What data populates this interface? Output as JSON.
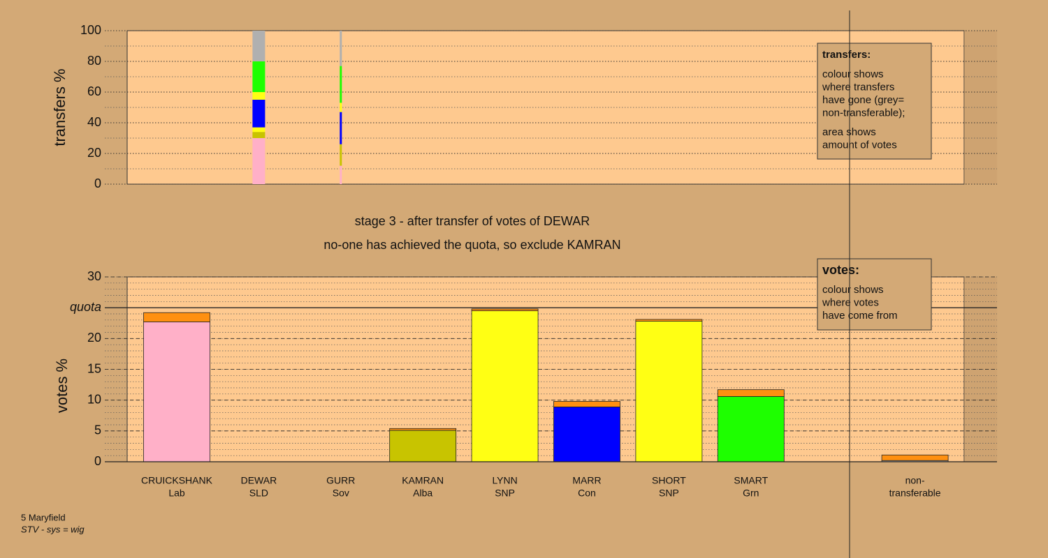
{
  "chart_data": [
    {
      "type": "bar",
      "stacked": true,
      "ylabel": "transfers %",
      "ylim": [
        0,
        100
      ],
      "yticks": [
        0,
        20,
        40,
        60,
        80,
        100
      ],
      "grid": true,
      "minor_step": 10,
      "amounts": [
        null,
        3.6,
        0.6,
        null,
        null,
        null,
        null,
        null,
        null,
        null
      ],
      "series": [
        {
          "color": "#ffb0c8",
          "values": [
            null,
            30,
            12,
            null,
            null,
            null,
            null,
            null,
            null,
            null
          ]
        },
        {
          "color": "#c8c400",
          "values": [
            null,
            4,
            14,
            null,
            null,
            null,
            null,
            null,
            null,
            null
          ]
        },
        {
          "color": "#ffff14",
          "values": [
            null,
            3,
            0,
            null,
            null,
            null,
            null,
            null,
            null,
            null
          ]
        },
        {
          "color": "#0000ff",
          "values": [
            null,
            18,
            21,
            null,
            null,
            null,
            null,
            null,
            null,
            null
          ]
        },
        {
          "color": "#ffff14",
          "values": [
            null,
            5,
            6,
            null,
            null,
            null,
            null,
            null,
            null,
            null
          ]
        },
        {
          "color": "#1eff00",
          "values": [
            null,
            20,
            24,
            null,
            null,
            null,
            null,
            null,
            null,
            null
          ]
        },
        {
          "color": "#b0b0b0",
          "values": [
            null,
            20,
            23,
            null,
            null,
            null,
            null,
            null,
            null,
            null
          ]
        }
      ],
      "legend": {
        "title": "transfers:",
        "lines": [
          [
            "colour shows",
            "where transfers",
            "have gone (grey=",
            "non-transferable);"
          ],
          [
            "area shows",
            "amount of votes"
          ]
        ]
      }
    },
    {
      "type": "bar",
      "stacked": true,
      "ylabel": "votes %",
      "title": [
        "stage 3 - after transfer of votes of DEWAR",
        "no-one has achieved the quota, so exclude KAMRAN"
      ],
      "categories": [
        "CRUICKSHANK",
        "DEWAR",
        "GURR",
        "KAMRAN",
        "LYNN",
        "MARR",
        "SHORT",
        "SMART",
        null,
        "non-"
      ],
      "parties": [
        "Lab",
        "SLD",
        "Sov",
        "Alba",
        "SNP",
        "Con",
        "SNP",
        "Grn",
        null,
        "transferable"
      ],
      "ylim": [
        0,
        30
      ],
      "yticks": [
        0,
        5,
        10,
        15,
        20,
        {
          "value": 25,
          "label": "quota"
        },
        30
      ],
      "grid": true,
      "minor_step": 1,
      "quota": 25,
      "series": [
        {
          "colors": [
            "#ffb0c8",
            "#ffd000",
            "#8080ff",
            "#c8c400",
            "#ffff14",
            "#0000ff",
            "#ffff14",
            "#1eff00",
            "#b0b0b0",
            "#b0b0b0"
          ],
          "values": [
            22.7,
            0,
            0,
            5.1,
            24.5,
            8.9,
            22.8,
            10.6,
            0,
            0.2
          ]
        },
        {
          "color": "#ff9010",
          "values": [
            1.5,
            0,
            0,
            0.3,
            0.3,
            0.9,
            0.3,
            1.1,
            0,
            0.9
          ]
        }
      ],
      "legend": {
        "title": "votes:",
        "lines": [
          [
            "colour shows",
            "where votes",
            "have come from"
          ]
        ]
      }
    }
  ],
  "footer": [
    "5 Maryfield",
    "STV - sys = wig"
  ]
}
